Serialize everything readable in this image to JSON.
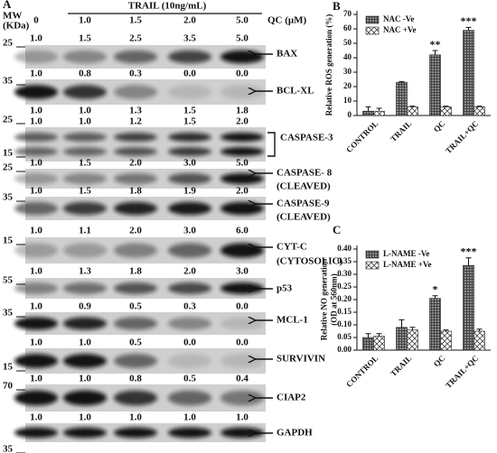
{
  "panel_a": {
    "label": "A",
    "mw_header": [
      "MW",
      "(KDa)"
    ],
    "treatment": "TRAIL (10ng/mL)",
    "dose_label": "QC (μM)",
    "doses": [
      "0",
      "1.0",
      "1.5",
      "2.0",
      "5.0"
    ],
    "blots": [
      {
        "name": [
          "BAX"
        ],
        "mw": [
          "25"
        ],
        "quant": [
          [
            "1.0",
            "1.5",
            "2.5",
            "3.5",
            "5.0"
          ]
        ]
      },
      {
        "name": [
          "BCL-XL"
        ],
        "mw": [
          "35"
        ],
        "quant": [
          [
            "1.0",
            "0.8",
            "0.3",
            "0.0",
            "0.0"
          ]
        ]
      },
      {
        "name": [
          "CASPASE-3"
        ],
        "mw": [
          "25",
          "15"
        ],
        "quant": [
          [
            "1.0",
            "1.0",
            "1.3",
            "1.5",
            "1.8"
          ],
          [
            "1.0",
            "1.0",
            "1.2",
            "1.5",
            "2.0"
          ]
        ]
      },
      {
        "name": [
          "CASPASE- 8",
          "(CLEAVED)"
        ],
        "mw": [
          "25"
        ],
        "quant": [
          [
            "1.0",
            "1.5",
            "2.0",
            "3.0",
            "5.0"
          ]
        ]
      },
      {
        "name": [
          "CASPASE-9",
          "(CLEAVED)"
        ],
        "mw": [
          "35"
        ],
        "quant": [
          [
            "1.0",
            "1.5",
            "1.8",
            "1.9",
            "2.0"
          ]
        ]
      },
      {
        "name": [
          "CYT-C",
          "(CYTOSOLIC)"
        ],
        "mw": [
          "15"
        ],
        "quant": [
          [
            "1.0",
            "1.1",
            "2.0",
            "3.0",
            "6.0"
          ]
        ]
      },
      {
        "name": [
          "p53"
        ],
        "mw": [
          "55"
        ],
        "quant": [
          [
            "1.0",
            "1.3",
            "1.8",
            "2.0",
            "3.0"
          ]
        ]
      },
      {
        "name": [
          "MCL-1"
        ],
        "mw": [
          "35"
        ],
        "quant": [
          [
            "1.0",
            "0.9",
            "0.5",
            "0.3",
            "0.0"
          ]
        ]
      },
      {
        "name": [
          "SURVIVIN"
        ],
        "mw": [
          "15"
        ],
        "quant": [
          [
            "1.0",
            "1.0",
            "0.5",
            "0.0",
            "0.0"
          ]
        ]
      },
      {
        "name": [
          "CIAP2"
        ],
        "mw": [
          "70"
        ],
        "quant": [
          [
            "1.0",
            "1.0",
            "0.8",
            "0.5",
            "0.4"
          ]
        ]
      },
      {
        "name": [
          "GAPDH"
        ],
        "mw": [
          "35"
        ],
        "quant": [
          [
            "1.0",
            "1.0",
            "1.0",
            "1.0",
            "1.0"
          ]
        ]
      }
    ]
  },
  "chart_data": [
    {
      "type": "bar",
      "panel": "B",
      "ylabel": [
        "Relative ROS generation (%)"
      ],
      "categories": [
        "CONTROL",
        "TRAIL",
        "QC",
        "TRAIL+QC"
      ],
      "series": [
        {
          "name": "NAC -Ve",
          "color": "#8c8c8c",
          "values": [
            3,
            23,
            42,
            59
          ],
          "errors": [
            3,
            0.5,
            3,
            2
          ]
        },
        {
          "name": "NAC +Ve",
          "color": "#ffffff",
          "values": [
            3,
            6,
            6,
            6
          ],
          "errors": [
            2,
            0.5,
            0.5,
            0.5
          ]
        }
      ],
      "annotations": [
        {
          "text": "**",
          "x": "QC"
        },
        {
          "text": "***",
          "x": "TRAIL+QC"
        }
      ],
      "ylim": [
        0,
        70
      ],
      "yticks": [
        0,
        10,
        20,
        30,
        40,
        50,
        60,
        70
      ],
      "legend": "upper left"
    },
    {
      "type": "bar",
      "panel": "C",
      "ylabel": [
        "Relative NO generation",
        "(OD at 560nm)"
      ],
      "categories": [
        "CONTROL",
        "TRAIL",
        "QC",
        "TRAIL+QC"
      ],
      "series": [
        {
          "name": "L-NAME -Ve",
          "color": "#8c8c8c",
          "values": [
            0.05,
            0.09,
            0.205,
            0.335
          ],
          "errors": [
            0.015,
            0.03,
            0.01,
            0.03
          ]
        },
        {
          "name": "L-NAME +Ve",
          "color": "#ffffff",
          "values": [
            0.055,
            0.08,
            0.075,
            0.075
          ],
          "errors": [
            0.01,
            0.01,
            0.005,
            0.008
          ]
        }
      ],
      "annotations": [
        {
          "text": "*",
          "x": "QC"
        },
        {
          "text": "***",
          "x": "TRAIL+QC"
        }
      ],
      "ylim": [
        0,
        0.4
      ],
      "yticks": [
        {
          "value": 0,
          "label": "0.00"
        },
        {
          "value": 0.05,
          "label": "0.05"
        },
        {
          "value": 0.1,
          "label": "0.10"
        },
        {
          "value": 0.15,
          "label": "0.15"
        },
        {
          "value": 0.2,
          "label": "0.20"
        },
        {
          "value": 0.25,
          "label": "0.25"
        },
        {
          "value": 0.3,
          "label": "0.30"
        },
        {
          "value": 0.35,
          "label": "0.35"
        },
        {
          "value": 0.4,
          "label": "0.40"
        }
      ],
      "legend": "upper left"
    }
  ]
}
